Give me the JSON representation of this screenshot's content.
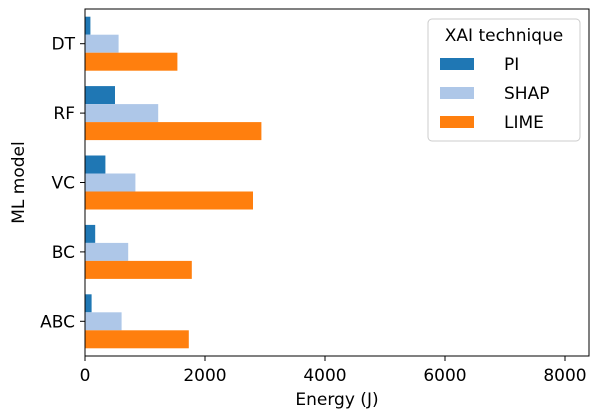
{
  "chart_data": {
    "type": "bar",
    "orientation": "horizontal",
    "categories": [
      "DT",
      "RF",
      "VC",
      "BC",
      "ABC"
    ],
    "series": [
      {
        "name": "PI",
        "values": [
          90,
          500,
          340,
          170,
          110
        ],
        "color": "#1f77b4"
      },
      {
        "name": "SHAP",
        "values": [
          560,
          1220,
          840,
          720,
          610
        ],
        "color": "#aec7e8"
      },
      {
        "name": "LIME",
        "values": [
          1540,
          2940,
          2800,
          1780,
          1730
        ],
        "color": "#ff7f0e"
      }
    ],
    "xlabel": "Energy (J)",
    "ylabel": "ML model",
    "xlim": [
      0,
      8400
    ],
    "xticks": [
      0,
      2000,
      4000,
      6000,
      8000
    ],
    "xtick_labels": [
      "0",
      "2000",
      "4000",
      "6000",
      "8000"
    ],
    "grid": false,
    "legend": {
      "title": "XAI technique",
      "placement": "top-right"
    }
  }
}
